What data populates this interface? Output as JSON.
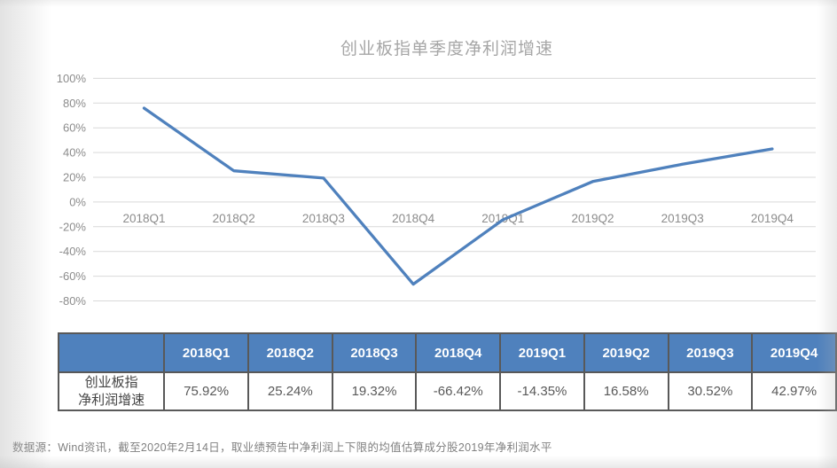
{
  "page": {
    "footer": "数据源：Wind资讯，截至2020年2月14日，取业绩预告中净利润上下限的均值估算成分股2019年净利润水平"
  },
  "chart_data": {
    "type": "line",
    "title": "创业板指单季度净利润增速",
    "categories": [
      "2018Q1",
      "2018Q2",
      "2018Q3",
      "2018Q4",
      "2019Q1",
      "2019Q2",
      "2019Q3",
      "2019Q4"
    ],
    "series": [
      {
        "name": "创业板指净利润增速",
        "values": [
          75.92,
          25.24,
          19.32,
          -66.42,
          -14.35,
          16.58,
          30.52,
          42.97
        ]
      }
    ],
    "xlabel": "",
    "ylabel": "",
    "ylim": [
      -80,
      100
    ],
    "ytick_step": 20,
    "ytick_labels": [
      "100%",
      "80%",
      "60%",
      "40%",
      "20%",
      "0%",
      "-20%",
      "-40%",
      "-60%",
      "-80%"
    ],
    "grid": true,
    "legend": false,
    "markers": false,
    "line_color": "#4f81bd"
  },
  "table": {
    "corner_label": "",
    "columns": [
      "2018Q1",
      "2018Q2",
      "2018Q3",
      "2018Q4",
      "2019Q1",
      "2019Q2",
      "2019Q3",
      "2019Q4"
    ],
    "rows": [
      {
        "label_lines": [
          "创业板指",
          "净利润增速"
        ],
        "values": [
          "75.92%",
          "25.24%",
          "19.32%",
          "-66.42%",
          "-14.35%",
          "16.58%",
          "30.52%",
          "42.97%"
        ]
      }
    ],
    "header_bg": "#4f81bd",
    "header_text_color": "#ffffff",
    "border_color": "#595959"
  },
  "colors": {
    "line": "#4f81bd",
    "gridline": "#d9d9d9",
    "axis_text": "#8c8c8c",
    "title_text": "#a6a6a6",
    "footer_text": "#808080"
  }
}
